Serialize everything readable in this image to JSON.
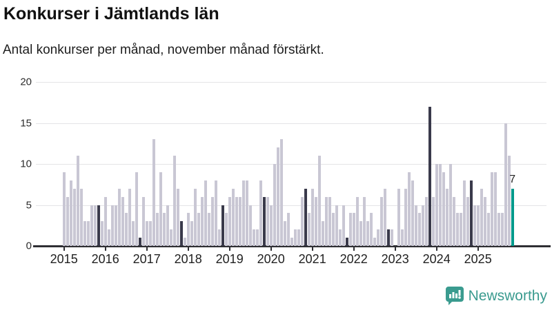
{
  "header": {
    "title": "Konkurser i Jämtlands län",
    "subtitle": "Antal konkurser per månad, november månad förstärkt."
  },
  "footer": {
    "brand": "Newsworthy",
    "logo_icon": "speech-bubble-bar-chart-icon"
  },
  "colors": {
    "bar_default": "#c9c7d4",
    "bar_november": "#3a3a4b",
    "bar_current": "#009a8c",
    "axis": "#2e2e33",
    "gridline": "#e4e4e6",
    "brand_teal": "#3a9b8f",
    "text": "#1f1f1f"
  },
  "chart_data": {
    "type": "bar",
    "title": "Konkurser i Jämtlands län",
    "subtitle": "Antal konkurser per månad, november månad förstärkt.",
    "xlabel": "",
    "ylabel": "",
    "ylim": [
      0,
      20
    ],
    "yticks": [
      0,
      5,
      10,
      15,
      20
    ],
    "grid": "horizontal",
    "highlighted_month": "november",
    "last_bar": {
      "month": "november",
      "year": "2025",
      "value": 7,
      "label": "7",
      "style": "teal"
    },
    "years": [
      {
        "year": "2015",
        "values": [
          9,
          6,
          8,
          7,
          11,
          7,
          3,
          3,
          5,
          5,
          5,
          3
        ]
      },
      {
        "year": "2016",
        "values": [
          6,
          2,
          5,
          5,
          7,
          6,
          4,
          7,
          3,
          9,
          1,
          6
        ]
      },
      {
        "year": "2017",
        "values": [
          3,
          3,
          13,
          4,
          9,
          4,
          5,
          2,
          11,
          7,
          3,
          1
        ]
      },
      {
        "year": "2018",
        "values": [
          4,
          3,
          7,
          4,
          6,
          8,
          4,
          6,
          8,
          2,
          5,
          4
        ]
      },
      {
        "year": "2019",
        "values": [
          6,
          7,
          6,
          6,
          8,
          8,
          5,
          2,
          2,
          8,
          6,
          6
        ]
      },
      {
        "year": "2020",
        "values": [
          5,
          10,
          12,
          13,
          3,
          4,
          1,
          2,
          2,
          6,
          7,
          4
        ]
      },
      {
        "year": "2021",
        "values": [
          7,
          6,
          11,
          3,
          6,
          6,
          4,
          5,
          2,
          5,
          1,
          4
        ]
      },
      {
        "year": "2022",
        "values": [
          4,
          6,
          3,
          6,
          3,
          4,
          1,
          2,
          6,
          7,
          2,
          2
        ]
      },
      {
        "year": "2023",
        "values": [
          0,
          7,
          2,
          7,
          9,
          8,
          5,
          4,
          5,
          6,
          17,
          6
        ]
      },
      {
        "year": "2024",
        "values": [
          10,
          10,
          9,
          7,
          10,
          6,
          4,
          4,
          8,
          6,
          8,
          5
        ]
      },
      {
        "year": "2025",
        "values": [
          5,
          7,
          6,
          4,
          9,
          9,
          4,
          4,
          15,
          11,
          7
        ]
      }
    ]
  }
}
